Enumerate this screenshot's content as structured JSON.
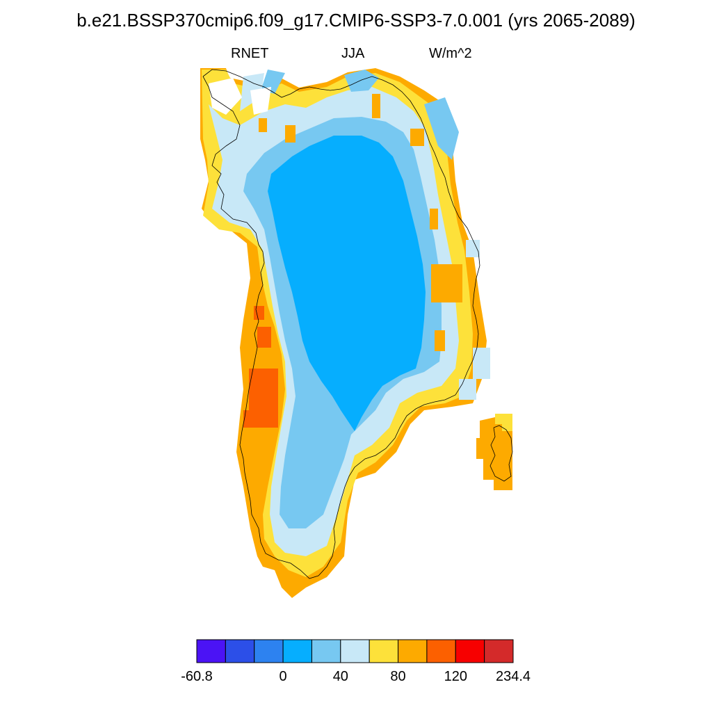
{
  "title": "b.e21.BSSP370cmip6.f09_g17.CMIP6-SSP3-7.0.001 (yrs 2065-2089)",
  "subtitle_left": "RNET",
  "subtitle_center": "JJA",
  "subtitle_right": "W/m^2",
  "colorbar": {
    "colors": [
      "#4b13f5",
      "#2c4fe8",
      "#2d82f0",
      "#06aefe",
      "#77c8f1",
      "#c8e8f7",
      "#fde13a",
      "#fdaa00",
      "#fc6000",
      "#f70000",
      "#d42a2a"
    ],
    "labels": [
      {
        "text": "-60.8",
        "boundary": 0
      },
      {
        "text": "0",
        "boundary": 3
      },
      {
        "text": "40",
        "boundary": 5
      },
      {
        "text": "80",
        "boundary": 7
      },
      {
        "text": "120",
        "boundary": 9
      },
      {
        "text": "234.4",
        "boundary": 11
      }
    ]
  },
  "map": {
    "variable": "RNET",
    "season": "JJA",
    "region": "Greenland",
    "scale": "discrete"
  }
}
